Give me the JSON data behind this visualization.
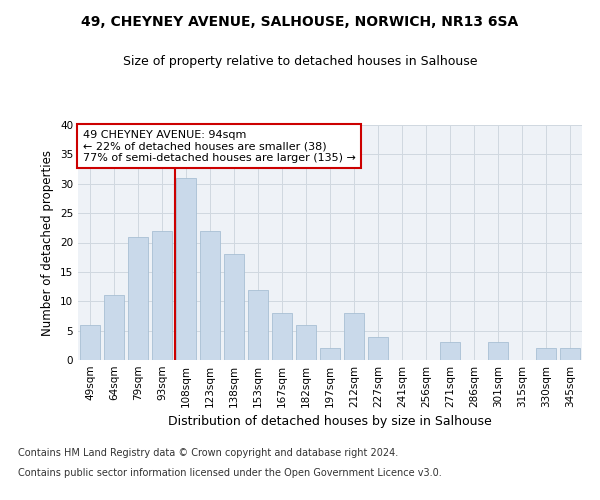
{
  "title_line1": "49, CHEYNEY AVENUE, SALHOUSE, NORWICH, NR13 6SA",
  "title_line2": "Size of property relative to detached houses in Salhouse",
  "xlabel": "Distribution of detached houses by size in Salhouse",
  "ylabel": "Number of detached properties",
  "bar_labels": [
    "49sqm",
    "64sqm",
    "79sqm",
    "93sqm",
    "108sqm",
    "123sqm",
    "138sqm",
    "153sqm",
    "167sqm",
    "182sqm",
    "197sqm",
    "212sqm",
    "227sqm",
    "241sqm",
    "256sqm",
    "271sqm",
    "286sqm",
    "301sqm",
    "315sqm",
    "330sqm",
    "345sqm"
  ],
  "bar_values": [
    6,
    11,
    21,
    22,
    31,
    22,
    18,
    12,
    8,
    6,
    2,
    8,
    4,
    0,
    0,
    3,
    0,
    3,
    0,
    2,
    2
  ],
  "bar_color": "#c9d9ea",
  "bar_edge_color": "#a8bfd4",
  "grid_color": "#d0d8e0",
  "background_color": "#eef2f7",
  "annotation_text": "49 CHEYNEY AVENUE: 94sqm\n← 22% of detached houses are smaller (38)\n77% of semi-detached houses are larger (135) →",
  "annotation_box_color": "#ffffff",
  "annotation_box_edge": "#cc0000",
  "vline_color": "#cc0000",
  "ylim": [
    0,
    40
  ],
  "yticks": [
    0,
    5,
    10,
    15,
    20,
    25,
    30,
    35,
    40
  ],
  "footnote_line1": "Contains HM Land Registry data © Crown copyright and database right 2024.",
  "footnote_line2": "Contains public sector information licensed under the Open Government Licence v3.0.",
  "title1_fontsize": 10,
  "title2_fontsize": 9,
  "xlabel_fontsize": 9,
  "ylabel_fontsize": 8.5,
  "tick_fontsize": 7.5,
  "annotation_fontsize": 8,
  "footnote_fontsize": 7
}
